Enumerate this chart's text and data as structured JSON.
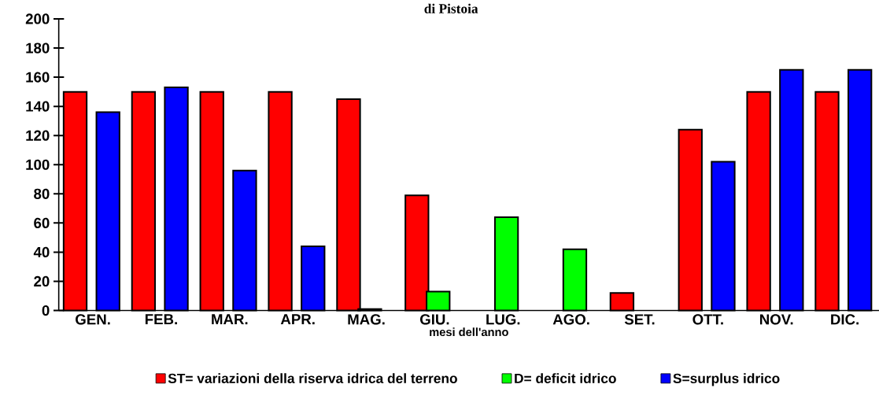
{
  "chart_data": {
    "type": "bar",
    "title": "di Pistoia",
    "xlabel": "mesi dell'anno",
    "categories": [
      "GEN.",
      "FEB.",
      "MAR.",
      "APR.",
      "MAG.",
      "GIU.",
      "LUG.",
      "AGO.",
      "SET.",
      "OTT.",
      "NOV.",
      "DIC."
    ],
    "series": [
      {
        "name": "ST= variazioni della riserva idrica del terreno",
        "color": "#ff0000",
        "values": [
          150,
          150,
          150,
          150,
          145,
          79,
          null,
          null,
          12,
          124,
          150,
          150
        ]
      },
      {
        "name": "D= deficit idrico",
        "color": "#00ff00",
        "values": [
          null,
          null,
          null,
          null,
          1,
          13,
          64,
          42,
          null,
          null,
          null,
          null
        ]
      },
      {
        "name": "S=surplus idrico",
        "color": "#0000ff",
        "values": [
          136,
          153,
          96,
          44,
          null,
          null,
          null,
          null,
          null,
          102,
          165,
          165
        ]
      }
    ],
    "ylim": [
      0,
      200
    ],
    "yticks": [
      0,
      20,
      40,
      60,
      80,
      100,
      120,
      140,
      160,
      180,
      200
    ],
    "grid": false,
    "legend": "bottom"
  }
}
